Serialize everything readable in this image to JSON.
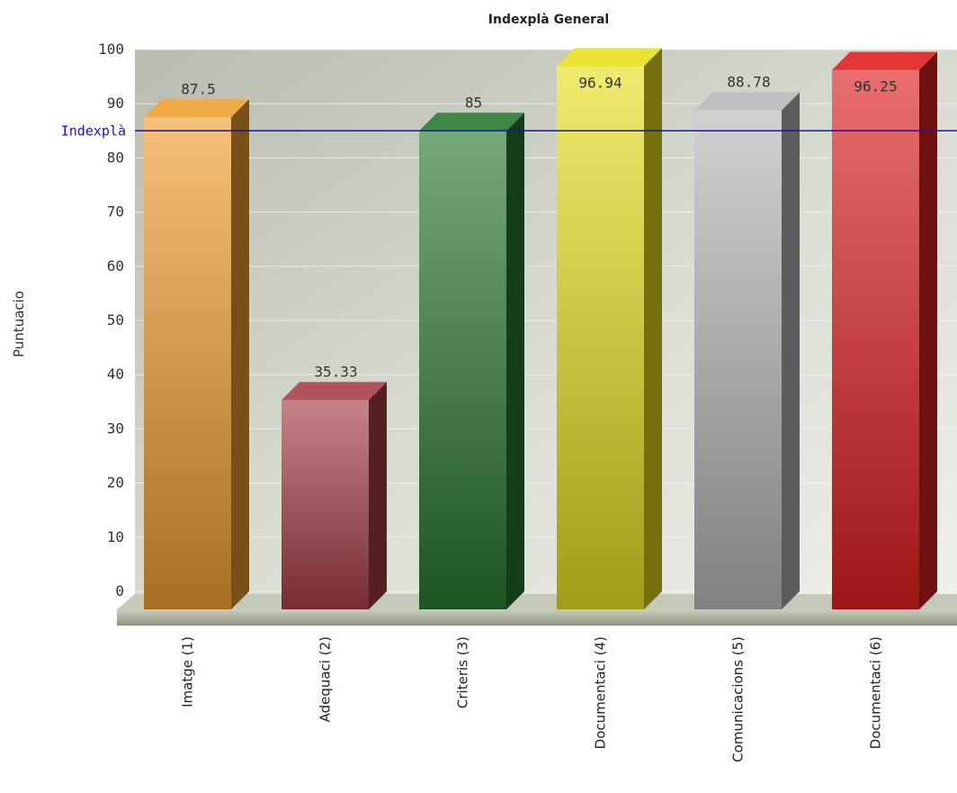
{
  "chart_data": {
    "type": "bar",
    "title": "Indexplà General",
    "xlabel": "",
    "ylabel": "Puntuacio",
    "ylim": [
      0,
      100
    ],
    "yticks": [
      0,
      10,
      20,
      30,
      40,
      50,
      60,
      70,
      80,
      90,
      100
    ],
    "grid": true,
    "categories": [
      "Imatge (1)",
      "Adequaci (2)",
      "Criteris (3)",
      "Documentaci (4)",
      "Comunicacions (5)",
      "Documentaci (6)"
    ],
    "values": [
      87.5,
      35.33,
      85,
      96.94,
      88.78,
      96.25
    ],
    "value_labels": [
      "87.5",
      "35.33",
      "85",
      "96.94",
      "88.78",
      "96.25"
    ],
    "bar_colors": [
      "#f0a030",
      "#a84048",
      "#2a7a30",
      "#e8e020",
      "#b8b8b8",
      "#e02020"
    ],
    "reference_line": {
      "label": "Indexplà",
      "value": 85,
      "color": "#1010e0"
    }
  }
}
